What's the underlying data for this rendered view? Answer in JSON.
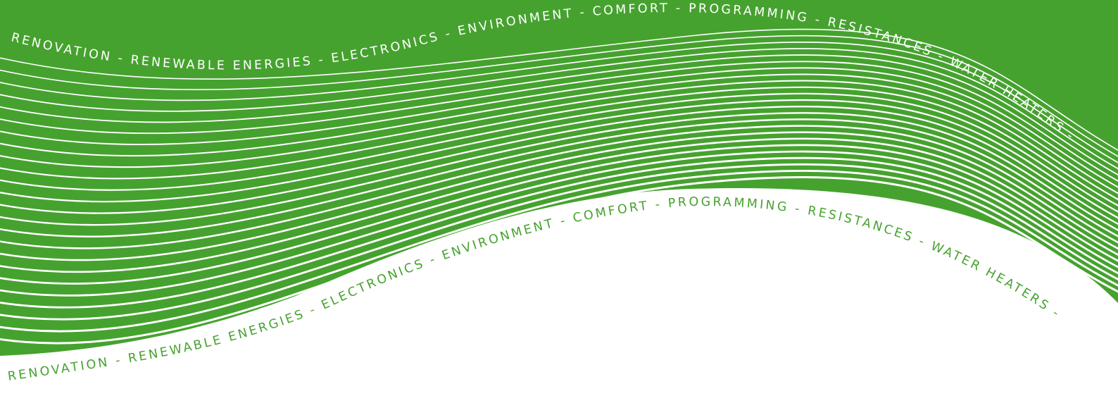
{
  "colors": {
    "brand_green": "#46a22f",
    "background": "#ffffff"
  },
  "top_caption": "RENOVATION - RENEWABLE ENERGIES - ELECTRONICS - ENVIRONMENT - COMFORT - PROGRAMMING - RESISTANCES - WATER HEATERS -",
  "bottom_caption": "RENOVATION - RENEWABLE ENERGIES - ELECTRONICS - ENVIRONMENT - COMFORT - PROGRAMMING - RESISTANCES - WATER HEATERS -"
}
